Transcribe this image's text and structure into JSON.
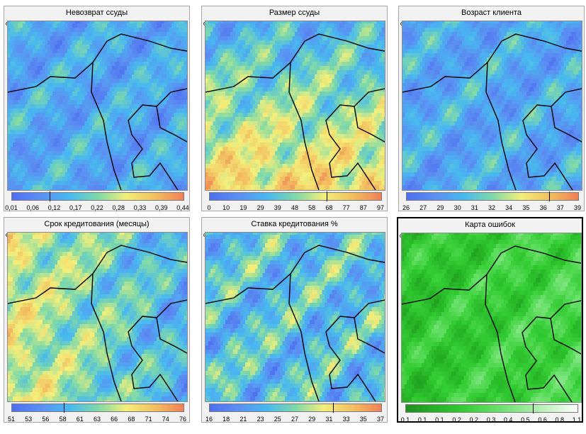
{
  "panels": [
    {
      "title": "Невозврат ссуды",
      "scale": "cool",
      "colors": [
        "#4f6ff0",
        "#5b8ff2",
        "#48b8f0",
        "#7fd9a8",
        "#f3ee7a",
        "#f2c060",
        "#f08057"
      ],
      "ticks": [
        "0,01",
        "0,06",
        "0,12",
        "0,17",
        "0,22",
        "0,28",
        "0,33",
        "0,39",
        "0,44"
      ],
      "marker": 0.22,
      "selected": false
    },
    {
      "title": "Размер ссуды",
      "scale": "warm",
      "colors": [
        "#4f6ff0",
        "#5b8ff2",
        "#48b8f0",
        "#7fd9a8",
        "#f3ee7a",
        "#f2c060",
        "#f08057"
      ],
      "ticks": [
        "0",
        "10",
        "19",
        "29",
        "39",
        "48",
        "58",
        "68",
        "77",
        "87",
        "97"
      ],
      "marker": 0.68,
      "selected": false
    },
    {
      "title": "Возраст клиента",
      "scale": "cool",
      "colors": [
        "#4f6ff0",
        "#5b8ff2",
        "#48b8f0",
        "#7fd9a8",
        "#f3ee7a",
        "#f2c060",
        "#f08057"
      ],
      "ticks": [
        "26",
        "27",
        "29",
        "30",
        "31",
        "32",
        "34",
        "35",
        "36",
        "37",
        "39"
      ],
      "marker": 0.83,
      "selected": false
    },
    {
      "title": "Срок кредитования (месяцы)",
      "scale": "mixed",
      "colors": [
        "#4f6ff0",
        "#5b8ff2",
        "#48b8f0",
        "#7fd9a8",
        "#f3ee7a",
        "#f2c060",
        "#f08057"
      ],
      "ticks": [
        "51",
        "53",
        "56",
        "58",
        "61",
        "63",
        "66",
        "68",
        "71",
        "74",
        "76"
      ],
      "marker": 0.3,
      "selected": false
    },
    {
      "title": "Ставка кредитования %",
      "scale": "cool2",
      "colors": [
        "#4f6ff0",
        "#5b8ff2",
        "#48b8f0",
        "#7fd9a8",
        "#f3ee7a",
        "#f2c060",
        "#f08057"
      ],
      "ticks": [
        "16",
        "18",
        "21",
        "23",
        "25",
        "27",
        "29",
        "31",
        "33",
        "35",
        "37"
      ],
      "marker": 0.72,
      "selected": false
    },
    {
      "title": "Карта ошибок",
      "scale": "green",
      "colors": [
        "#1f8f1f",
        "#25b125",
        "#33cc33",
        "#5ddd5d",
        "#8ee88e",
        "#c5f3c5",
        "#ffffff"
      ],
      "ticks": [
        "0,1",
        "0,1",
        "0,1",
        "0,2",
        "0,2",
        "0,3",
        "0,4",
        "0,5",
        "0,6",
        "0,8",
        "1,1"
      ],
      "marker": 0.74,
      "selected": true
    }
  ]
}
